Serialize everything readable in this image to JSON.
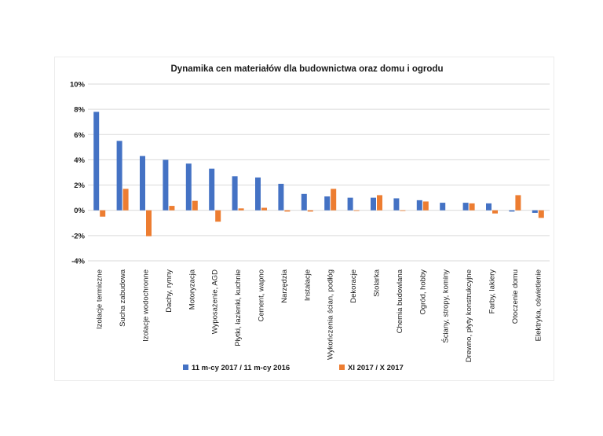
{
  "chart_data": {
    "type": "bar",
    "title": "Dynamika cen materiałów dla budownictwa oraz domu i ogrodu",
    "xlabel": "",
    "ylabel": "",
    "ylim": [
      -4,
      10
    ],
    "yticks": [
      -4,
      -2,
      0,
      2,
      4,
      6,
      8,
      10
    ],
    "ytick_labels": [
      "-4%",
      "-2%",
      "0%",
      "2%",
      "4%",
      "6%",
      "8%",
      "10%"
    ],
    "grid": true,
    "legend_position": "bottom",
    "categories": [
      "Izolacje termiczne",
      "Sucha zabudowa",
      "Izolacje wodochronne",
      "Dachy, rynny",
      "Motoryzacja",
      "Wyposażenie, AGD",
      "Płytki, łazienki, kuchnie",
      "Cement, wapno",
      "Narzędzia",
      "Instalacje",
      "Wykończenia ścian, podłóg",
      "Dekoracje",
      "Stolarka",
      "Chemia budowlana",
      "Ogród, hobby",
      "Ściany, stropy, kominy",
      "Drewno, płyty konstrukcyjne",
      "Farby, lakiery",
      "Otoczenie domu",
      "Elektryka, oświetlenie"
    ],
    "series": [
      {
        "name": "11 m-cy 2017 / 11 m-cy 2016",
        "color": "#4472C4",
        "values": [
          7.8,
          5.5,
          4.3,
          4.0,
          3.7,
          3.3,
          2.7,
          2.6,
          2.1,
          1.3,
          1.1,
          1.0,
          1.0,
          0.95,
          0.8,
          0.6,
          0.6,
          0.55,
          -0.1,
          -0.2
        ]
      },
      {
        "name": "XI 2017 / X 2017",
        "color": "#ED7D31",
        "values": [
          -0.5,
          1.7,
          -2.05,
          0.35,
          0.75,
          -0.9,
          0.15,
          0.2,
          -0.1,
          -0.1,
          1.7,
          -0.05,
          1.2,
          -0.05,
          0.7,
          0.0,
          0.55,
          -0.25,
          1.2,
          -0.6
        ]
      }
    ]
  }
}
